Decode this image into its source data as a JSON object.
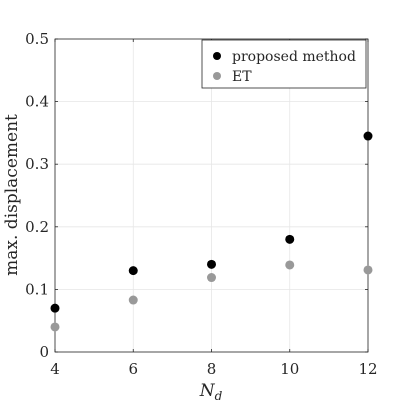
{
  "chart_data": {
    "type": "scatter",
    "xlabel_main": "N",
    "xlabel_sub": "d",
    "ylabel": "max. displacement",
    "xlim": [
      4,
      12
    ],
    "ylim": [
      0,
      0.5
    ],
    "xticks": [
      4,
      6,
      8,
      10,
      12
    ],
    "yticks": [
      0,
      0.1,
      0.2,
      0.3,
      0.4,
      0.5
    ],
    "ytick_labels": [
      "0",
      "0.1",
      "0.2",
      "0.3",
      "0.4",
      "0.5"
    ],
    "grid": true,
    "legend_position": "top-right",
    "series": [
      {
        "name": "proposed method",
        "color": "#000000",
        "x": [
          4,
          6,
          8,
          10,
          12
        ],
        "y": [
          0.07,
          0.13,
          0.14,
          0.18,
          0.345
        ]
      },
      {
        "name": "ET",
        "color": "#999999",
        "x": [
          4,
          6,
          8,
          10,
          12
        ],
        "y": [
          0.04,
          0.083,
          0.119,
          0.139,
          0.131
        ]
      }
    ]
  }
}
